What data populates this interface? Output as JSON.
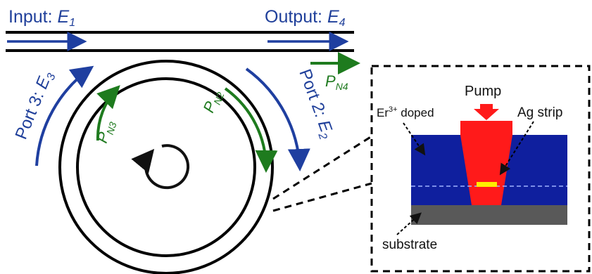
{
  "labels": {
    "input_prefix": "Input: ",
    "input_symbol": "E",
    "input_sub": "1",
    "output_prefix": "Output: ",
    "output_symbol": "E",
    "output_sub": "4",
    "port3_prefix": "Port 3: ",
    "port3_symbol": "E",
    "port3_sub": "3",
    "port2_prefix": "Port 2: ",
    "port2_symbol": "E",
    "port2_sub": "2",
    "pn4_symbol": "P",
    "pn4_sub": "N4",
    "pn3_symbol": "P",
    "pn3_sub": "N3",
    "pn2_symbol": "P",
    "pn2_sub": "N2"
  },
  "inset": {
    "pump_label": "Pump",
    "ag_strip_label": "Ag strip",
    "er_label_prefix": "Er",
    "er_label_sup": "3+",
    "er_label_suffix": " doped",
    "substrate_label": "substrate"
  },
  "colors": {
    "blue_arrow": "#1f3fa0",
    "green_arrow": "#1e7b1e",
    "doped_layer": "#0f1f9e",
    "substrate": "#595959",
    "pump": "#ff1a1a",
    "ag_strip": "#ffee00"
  }
}
